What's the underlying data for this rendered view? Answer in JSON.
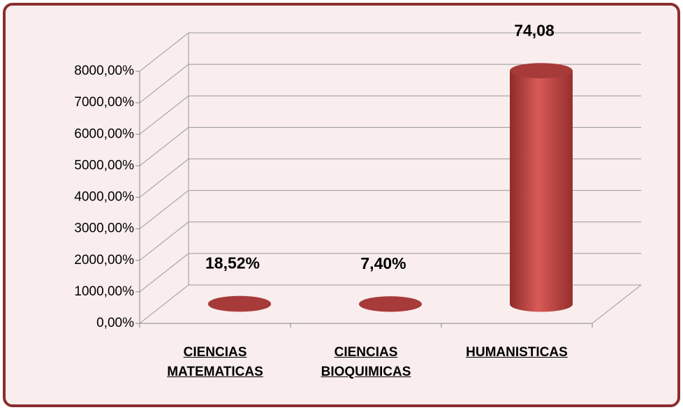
{
  "chart_data": {
    "type": "cylinder3d",
    "categories": [
      "CIENCIAS MATEMATICAS",
      "CIENCIAS BIOQUIMICAS",
      "HUMANISTICAS"
    ],
    "values": [
      0.1852,
      0.074,
      74.08
    ],
    "value_labels": [
      "18,52%",
      "7,40%",
      "74,08"
    ],
    "color": "#c0504d",
    "ylim": [
      0,
      80
    ],
    "yticks": [
      {
        "value": 0,
        "label": "0,00%"
      },
      {
        "value": 10,
        "label": "1000,00%"
      },
      {
        "value": 20,
        "label": "2000,00%"
      },
      {
        "value": 30,
        "label": "3000,00%"
      },
      {
        "value": 40,
        "label": "4000,00%"
      },
      {
        "value": 50,
        "label": "5000,00%"
      },
      {
        "value": 60,
        "label": "6000,00%"
      },
      {
        "value": 70,
        "label": "7000,00%"
      },
      {
        "value": 80,
        "label": "8000,00%"
      }
    ],
    "grid": true
  }
}
